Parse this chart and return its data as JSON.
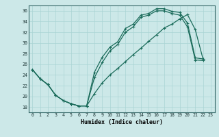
{
  "xlabel": "Humidex (Indice chaleur)",
  "bg_color": "#cce8e8",
  "line_color": "#1a6b5a",
  "grid_color": "#aad4d4",
  "xlim": [
    -0.5,
    23.5
  ],
  "ylim": [
    17.0,
    37.0
  ],
  "xticks": [
    0,
    1,
    2,
    3,
    4,
    5,
    6,
    7,
    8,
    9,
    10,
    11,
    12,
    13,
    14,
    15,
    16,
    17,
    18,
    19,
    20,
    21,
    22,
    23
  ],
  "yticks": [
    18,
    20,
    22,
    24,
    26,
    28,
    30,
    32,
    34,
    36
  ],
  "curve1_x": [
    0,
    1,
    2,
    3,
    4,
    5,
    6,
    7,
    8,
    9,
    10,
    11,
    12,
    13,
    14,
    15,
    16,
    17,
    18,
    19,
    20,
    21,
    22
  ],
  "curve1_y": [
    25.0,
    23.3,
    22.2,
    20.2,
    19.2,
    18.6,
    18.2,
    18.2,
    24.5,
    27.3,
    29.2,
    30.2,
    32.7,
    33.5,
    35.2,
    35.5,
    36.4,
    36.4,
    35.9,
    35.7,
    33.7,
    27.2,
    27.0
  ],
  "curve2_x": [
    0,
    1,
    2,
    3,
    4,
    5,
    6,
    7,
    8,
    9,
    10,
    11,
    12,
    13,
    14,
    15,
    16,
    17,
    18,
    19,
    20,
    21,
    22
  ],
  "curve2_y": [
    25.0,
    23.3,
    22.2,
    20.2,
    19.2,
    18.6,
    18.2,
    18.2,
    23.5,
    26.3,
    28.5,
    29.7,
    32.0,
    33.0,
    34.8,
    35.2,
    36.0,
    36.0,
    35.5,
    35.2,
    33.0,
    26.8,
    26.7
  ],
  "curve3_x": [
    0,
    1,
    2,
    3,
    4,
    5,
    6,
    7,
    8,
    9,
    10,
    11,
    12,
    13,
    14,
    15,
    16,
    17,
    18,
    19,
    20,
    21,
    22
  ],
  "curve3_y": [
    25.0,
    23.3,
    22.2,
    20.2,
    19.2,
    18.6,
    18.2,
    18.2,
    20.5,
    22.5,
    24.0,
    25.2,
    26.5,
    27.8,
    29.0,
    30.3,
    31.5,
    32.8,
    33.5,
    34.5,
    35.3,
    32.5,
    27.0
  ]
}
